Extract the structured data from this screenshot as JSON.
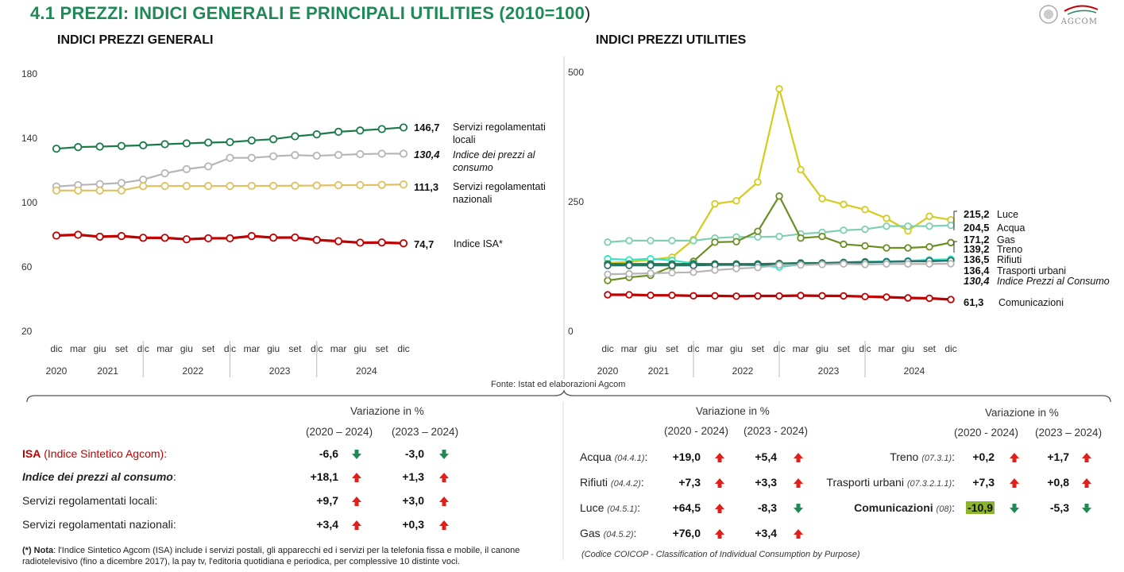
{
  "header": {
    "title": "4.1 PREZZI: INDICI GENERALI E PRINCIPALI UTILITIES (2010=100",
    "title_close": ")",
    "logo_text": "AGCOM"
  },
  "source": "Fonte: Istat ed elaborazioni Agcom",
  "chart_data": [
    {
      "type": "line",
      "title": "INDICI PREZZI GENERALI",
      "x": [
        "dic",
        "mar",
        "giu",
        "set",
        "dic",
        "mar",
        "giu",
        "set",
        "dic",
        "mar",
        "giu",
        "set",
        "dic",
        "mar",
        "giu",
        "set",
        "dic"
      ],
      "year_labels": [
        "2020",
        "2021",
        "2022",
        "2023",
        "2024"
      ],
      "ylim": [
        20,
        180
      ],
      "yticks": [
        "20",
        "60",
        "100",
        "140",
        "180"
      ],
      "series": [
        {
          "name": "Servizi regolamentati locali",
          "end_label": "146,7",
          "color": "#1a7a4a",
          "values": [
            133.5,
            134.5,
            134.8,
            135.2,
            135.6,
            136.3,
            136.8,
            137.3,
            137.6,
            138.6,
            139.4,
            141.2,
            142.4,
            144.0,
            144.8,
            145.7,
            146.7
          ]
        },
        {
          "name": "Indice dei prezzi al consumo",
          "end_label": "130,4",
          "color": "#b5b5b5",
          "italic": true,
          "values": [
            110.0,
            110.9,
            111.5,
            112.2,
            114.3,
            118.2,
            120.8,
            122.5,
            127.8,
            127.8,
            128.8,
            129.5,
            129.1,
            129.6,
            130.1,
            130.4,
            130.4
          ]
        },
        {
          "name": "Servizi regolamentati nazionali",
          "end_label": "111,3",
          "color": "#e0c060",
          "values": [
            107.5,
            107.5,
            107.5,
            107.5,
            110.2,
            110.3,
            110.3,
            110.3,
            110.3,
            110.4,
            110.4,
            110.5,
            110.6,
            110.8,
            110.9,
            111.0,
            111.3
          ]
        },
        {
          "name": "Indice ISA*",
          "end_label": "74,7",
          "color": "#c00000",
          "values": [
            79.5,
            80.0,
            78.8,
            79.2,
            78.1,
            78.1,
            77.2,
            77.8,
            77.8,
            79.2,
            78.2,
            78.3,
            76.8,
            76.0,
            75.1,
            75.2,
            74.7
          ]
        }
      ],
      "label_lines": {
        "Servizi regolamentati locali": [
          "Servizi regolamentati",
          "locali"
        ],
        "Indice dei prezzi al consumo": [
          "Indice dei prezzi al",
          "consumo"
        ],
        "Servizi regolamentati nazionali": [
          "Servizi regolamentati",
          "nazionali"
        ],
        "Indice ISA*": [
          "Indice ISA*"
        ]
      }
    },
    {
      "type": "line",
      "title": "INDICI PREZZI UTILITIES",
      "x": [
        "dic",
        "mar",
        "giu",
        "set",
        "dic",
        "mar",
        "giu",
        "set",
        "dic",
        "mar",
        "giu",
        "set",
        "dic",
        "mar",
        "giu",
        "set",
        "dic"
      ],
      "year_labels": [
        "2020",
        "2021",
        "2022",
        "2023",
        "2024"
      ],
      "ylim": [
        0,
        500
      ],
      "yticks": [
        "0",
        "250",
        "500"
      ],
      "series": [
        {
          "name": "Luce",
          "end_label": "215,2",
          "color": "#d4cc1c",
          "values": [
            132,
            134,
            138,
            143,
            177,
            246,
            252,
            288,
            468,
            312,
            256,
            245,
            235,
            218,
            194,
            222,
            215.2
          ]
        },
        {
          "name": "Acqua",
          "end_label": "204,5",
          "color": "#7fd0b0",
          "values": [
            172,
            175,
            175,
            175,
            175,
            180,
            182,
            182,
            183,
            188,
            191,
            195,
            197,
            203,
            203,
            203,
            204.5
          ]
        },
        {
          "name": "Gas",
          "end_label": "171,2",
          "color": "#6b8e23",
          "values": [
            98,
            104,
            108,
            125,
            135,
            172,
            173,
            193,
            261,
            180,
            183,
            168,
            165,
            161,
            161,
            163,
            171.2
          ]
        },
        {
          "name": "Treno",
          "end_label": "139,2",
          "color": "#2ee8c8",
          "values": [
            140,
            138,
            140,
            137,
            131,
            129,
            129,
            127,
            124,
            129,
            130,
            133,
            134,
            135,
            136,
            138,
            139.2
          ]
        },
        {
          "name": "Rifiuti",
          "end_label": "136,5",
          "color": "#1a7a4a",
          "values": [
            130,
            130,
            130,
            130,
            130,
            130,
            130,
            130,
            131,
            132,
            132,
            133,
            134,
            134,
            135,
            135,
            136.5
          ]
        },
        {
          "name": "Trasporti urbani",
          "end_label": "136,4",
          "color": "#2f6f6f",
          "values": [
            127,
            127,
            127,
            127,
            127,
            128,
            128,
            128,
            129,
            130,
            131,
            132,
            133,
            134,
            135,
            136,
            136.4
          ]
        },
        {
          "name": "Indice Prezzi al Consumo",
          "end_label": "130,4",
          "color": "#b5b5b5",
          "italic": true,
          "values": [
            110,
            111,
            112,
            113,
            114,
            118,
            121,
            123,
            128,
            128,
            129,
            130,
            129,
            130,
            130,
            130,
            130.4
          ]
        },
        {
          "name": "Comunicazioni",
          "end_label": "61,3",
          "color": "#c00000",
          "values": [
            70.5,
            70.5,
            69.5,
            69.5,
            68.5,
            68.5,
            67.8,
            68.2,
            68.2,
            69.0,
            68.5,
            68.3,
            67.0,
            66.0,
            64.4,
            63.7,
            61.3
          ]
        }
      ]
    }
  ],
  "variations": {
    "heading": "Variazione in %",
    "p1_2024_a": "(2020 – 2024)",
    "p1_2024_b": "(2023 – 2024)",
    "p2_a": "(2020 - 2024)",
    "p2_b": "(2023 - 2024)",
    "p3_a": "(2020 - 2024)",
    "p3_b": "(2023 – 2024)",
    "left_rows": [
      {
        "label_strong": "ISA",
        "label_rest": " (Indice Sintetico Agcom):",
        "v1": "-6,6",
        "d1": "down",
        "v2": "-3,0",
        "d2": "down"
      },
      {
        "label_strong": "Indice dei prezzi al consumo",
        "label_rest": ":",
        "v1": "+18,1",
        "d1": "up",
        "v2": "+1,3",
        "d2": "up"
      },
      {
        "label_strong": "",
        "label_rest": "Servizi regolamentati locali:",
        "v1": "+9,7",
        "d1": "up",
        "v2": "+3,0",
        "d2": "up"
      },
      {
        "label_strong": "",
        "label_rest": "Servizi regolamentati nazionali:",
        "v1": "+3,4",
        "d1": "up",
        "v2": "+0,3",
        "d2": "up"
      }
    ],
    "mid_rows": [
      {
        "label": "Acqua",
        "code": "(04.4.1)",
        "v1": "+19,0",
        "d1": "up",
        "v2": "+5,4",
        "d2": "up"
      },
      {
        "label": "Rifiuti",
        "code": "(04.4.2)",
        "v1": "+7,3",
        "d1": "up",
        "v2": "+3,3",
        "d2": "up"
      },
      {
        "label": "Luce",
        "code": "(04.5.1)",
        "v1": "+64,5",
        "d1": "up",
        "v2": "-8,3",
        "d2": "down"
      },
      {
        "label": "Gas",
        "code": "(04.5.2)",
        "v1": "+76,0",
        "d1": "up",
        "v2": "+3,4",
        "d2": "up"
      }
    ],
    "right_rows": [
      {
        "label": "Treno",
        "code": "(07.3.1)",
        "v1": "+0,2",
        "d1": "up",
        "v2": "+1,7",
        "d2": "up"
      },
      {
        "label": "Trasporti urbani",
        "code": "(07.3.2.1.1)",
        "v1": "+7,3",
        "d1": "up",
        "v2": "+0,8",
        "d2": "up"
      },
      {
        "label": "Comunicazioni",
        "code": "(08)",
        "v1": "-10,9",
        "d1": "down",
        "v2": "-5,3",
        "d2": "down",
        "bold": true,
        "highlight": true
      }
    ]
  },
  "note": {
    "label": "(*) Nota",
    "text": ": l'Indice Sintetico Agcom (ISA) include i servizi postali, gli apparecchi ed i servizi per la telefonia fissa e mobile, il canone radiotelevisivo (fino a dicembre 2017), la pay tv, l'editoria quotidiana e periodica, per complessive 10 distinte voci."
  },
  "coicop": "(Codice COICOP - Classification of Individual Consumption by Purpose)",
  "colors": {
    "title_green": "#1f8a56",
    "isa_red": "#c00000",
    "up_arrow": "#e0201a",
    "down_arrow": "#1f8a56"
  }
}
